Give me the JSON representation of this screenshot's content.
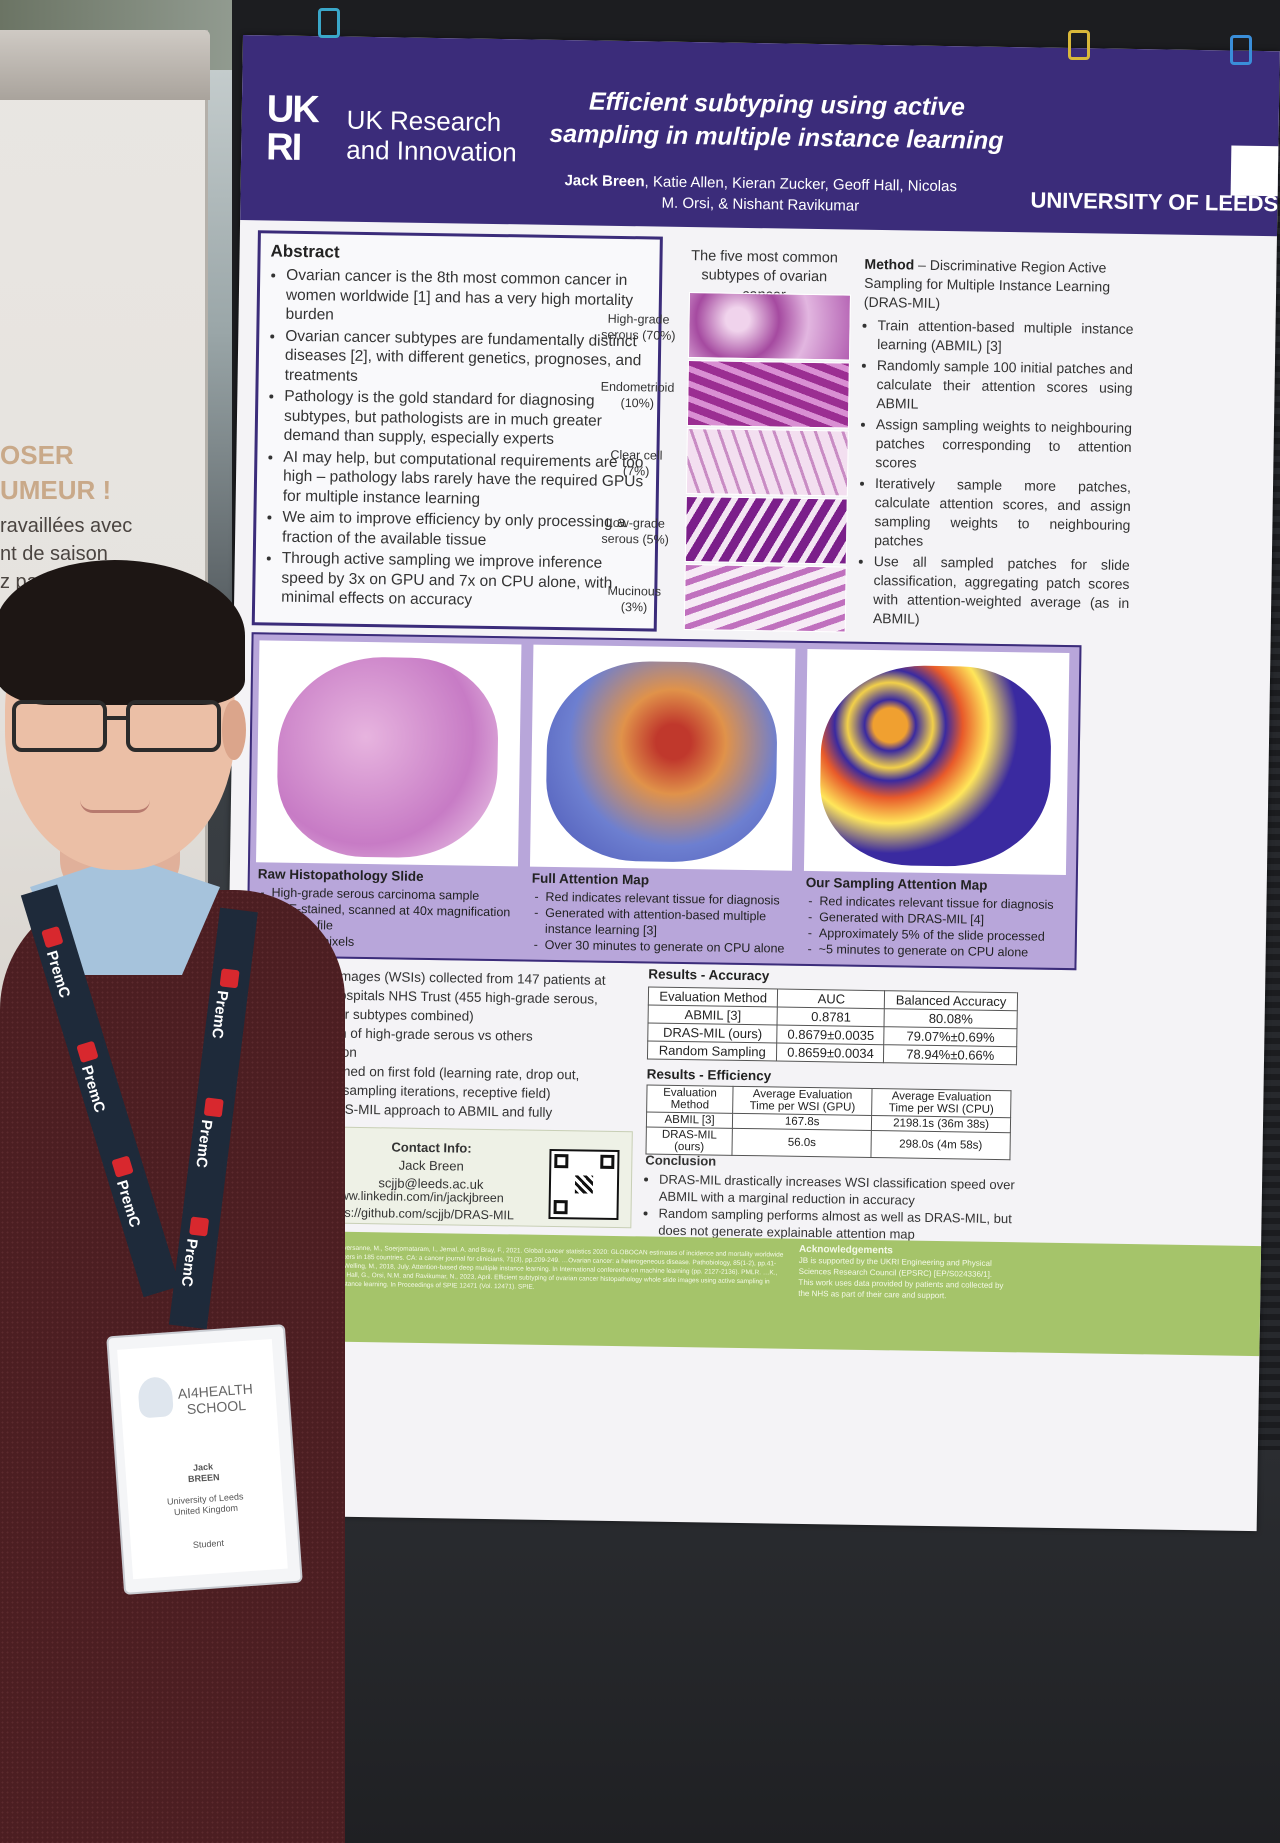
{
  "banner": {
    "lines": [
      "OSER",
      "UMEUR !",
      "ravaillées avec",
      "nt de saison",
      "z parle"
    ]
  },
  "poster": {
    "funder": "UK Research\nand Innovation",
    "funder_logo": "UK\nRI",
    "title": "Efficient subtyping using active sampling in multiple instance learning",
    "authors_bold": "Jack Breen",
    "authors_rest": ", Katie Allen, Kieran Zucker, Geoff Hall, Nicolas M. Orsi, & Nishant Ravikumar",
    "university": "UNIVERSITY OF LEEDS",
    "abstract": {
      "heading": "Abstract",
      "items": [
        "Ovarian cancer is the 8th most common cancer in women worldwide [1] and has a very high mortality burden",
        "Ovarian cancer subtypes are fundamentally distinct diseases [2], with different genetics, prognoses, and treatments",
        "Pathology is the gold standard for diagnosing subtypes, but pathologists are in much greater demand than supply, especially experts",
        "AI may help, but computational requirements are too high – pathology labs rarely have the required GPUs for multiple instance learning",
        "We aim to improve efficiency by only processing a fraction of the available tissue",
        "Through active sampling we improve inference speed by 3x on GPU and 7x on CPU alone, with minimal effects on accuracy"
      ]
    },
    "subtypes": {
      "title": "The five most common subtypes of ovarian cancer",
      "items": [
        "High-grade serous (70%)",
        "Endometrioid (10%)",
        "Clear cell (7%)",
        "Low-grade serous (5%)",
        "Mucinous (3%)"
      ]
    },
    "method": {
      "heading": "Method",
      "subtitle": " – Discriminative Region Active Sampling for Multiple Instance Learning (DRAS-MIL)",
      "items": [
        "Train attention-based multiple instance learning (ABMIL) [3]",
        "Randomly sample 100 initial patches and calculate their attention scores using ABMIL",
        "Assign sampling weights to neighbouring patches corresponding to attention scores",
        "Iteratively sample more patches, calculate attention scores, and assign sampling weights to neighbouring patches",
        "Use all sampled patches for slide classification, aggregating patch scores with attention-weighted average (as in ABMIL)"
      ]
    },
    "slides": [
      {
        "title": "Raw Histopathology Slide",
        "items": [
          "High-grade serous carcinoma sample",
          "H&E-stained, scanned at 40x magnification",
          "2.87GB file",
          "x 93,803 pixels"
        ]
      },
      {
        "title": "Full Attention Map",
        "items": [
          "Red indicates relevant tissue for diagnosis",
          "Generated with attention-based multiple instance learning [3]",
          "Over 30 minutes to generate on CPU alone"
        ]
      },
      {
        "title": "Our Sampling Attention Map",
        "items": [
          "Red indicates relevant tissue for diagnosis",
          "Generated with DRAS-MIL [4]",
          "Approximately 5% of the slide processed",
          "~5 minutes to generate on CPU alone"
        ]
      }
    ],
    "dataset": [
      "de images (WSIs) collected from 147 patients at",
      "g Hospitals NHS Trust (455 high-grade serous,",
      "r four subtypes combined)",
      "ation of high-grade serous vs others",
      "idation",
      "rs tuned on first fold (learning rate, drop out,",
      "ate, sampling iterations, receptive field)",
      "DRAS-MIL approach to ABMIL and fully",
      "g"
    ],
    "contact": {
      "heading": "Contact Info:",
      "name": "Jack Breen",
      "email": "scjjb@leeds.ac.uk",
      "link1": "www.linkedin.com/in/jackjbreen",
      "link2": "ttps://github.com/scjjb/DRAS-MIL"
    },
    "accuracy": {
      "heading": "Results - Accuracy",
      "columns": [
        "Evaluation Method",
        "AUC",
        "Balanced Accuracy"
      ],
      "rows": [
        [
          "ABMIL [3]",
          "0.8781",
          "80.08%"
        ],
        [
          "DRAS-MIL (ours)",
          "0.8679±0.0035",
          "79.07%±0.69%"
        ],
        [
          "Random Sampling",
          "0.8659±0.0034",
          "78.94%±0.66%"
        ]
      ]
    },
    "efficiency": {
      "heading": "Results - Efficiency",
      "columns": [
        "Evaluation Method",
        "Average Evaluation Time per WSI (GPU)",
        "Average Evaluation Time per WSI (CPU)"
      ],
      "rows": [
        [
          "ABMIL [3]",
          "167.8s",
          "2198.1s (36m 38s)"
        ],
        [
          "DRAS-MIL (ours)",
          "56.0s",
          "298.0s (4m 58s)"
        ]
      ]
    },
    "conclusion": {
      "heading": "Conclusion",
      "items": [
        "DRAS-MIL drastically increases WSI classification speed over ABMIL with a marginal reduction in accuracy",
        "Random sampling performs almost as well as DRAS-MIL, but does not generate explainable attention map"
      ]
    },
    "acknowledgements": {
      "heading": "Acknowledgements",
      "text": "JB is supported by the UKRI Engineering and Physical Sciences Research Council (EPSRC) [EP/S024336/1]. This work uses data provided by patients and collected by the NHS as part of their care and support."
    },
    "references": "…R.L., Laversanne, M., Soerjomataram, I., Jemal, A. and Bray, F., 2021. Global cancer statistics 2020: GLOBOCAN estimates of incidence and mortality worldwide for 36 cancers in 185 countries. CA: a cancer journal for clinicians, 71(3), pp.209-249. …Ovarian cancer: a heterogeneous disease. Pathobiology, 85(1-2), pp.41-49. …and Welling, M., 2018, July. Attention-based deep multiple instance learning. In International conference on machine learning (pp. 2127-2136). PMLR. …K., Zucker, K., Hall, G., Orsi, N.M. and Ravikumar, N., 2023, April. Efficient subtyping of ovarian cancer histopathology whole slide images using active sampling in multiple instance learning. In Proceedings of SPIE 12471 (Vol. 12471). SPIE."
  },
  "lanyard": {
    "brand": "PremC"
  },
  "badge": {
    "title": "AI4HEALTH SCHOOL",
    "name": "Jack\nBREEN",
    "org": "University of Leeds\nUnited Kingdom",
    "role": "Student"
  },
  "colors": {
    "poster_header": "#3b2c7a",
    "footer": "#a5c46a",
    "sweater": "#4c1e22"
  }
}
